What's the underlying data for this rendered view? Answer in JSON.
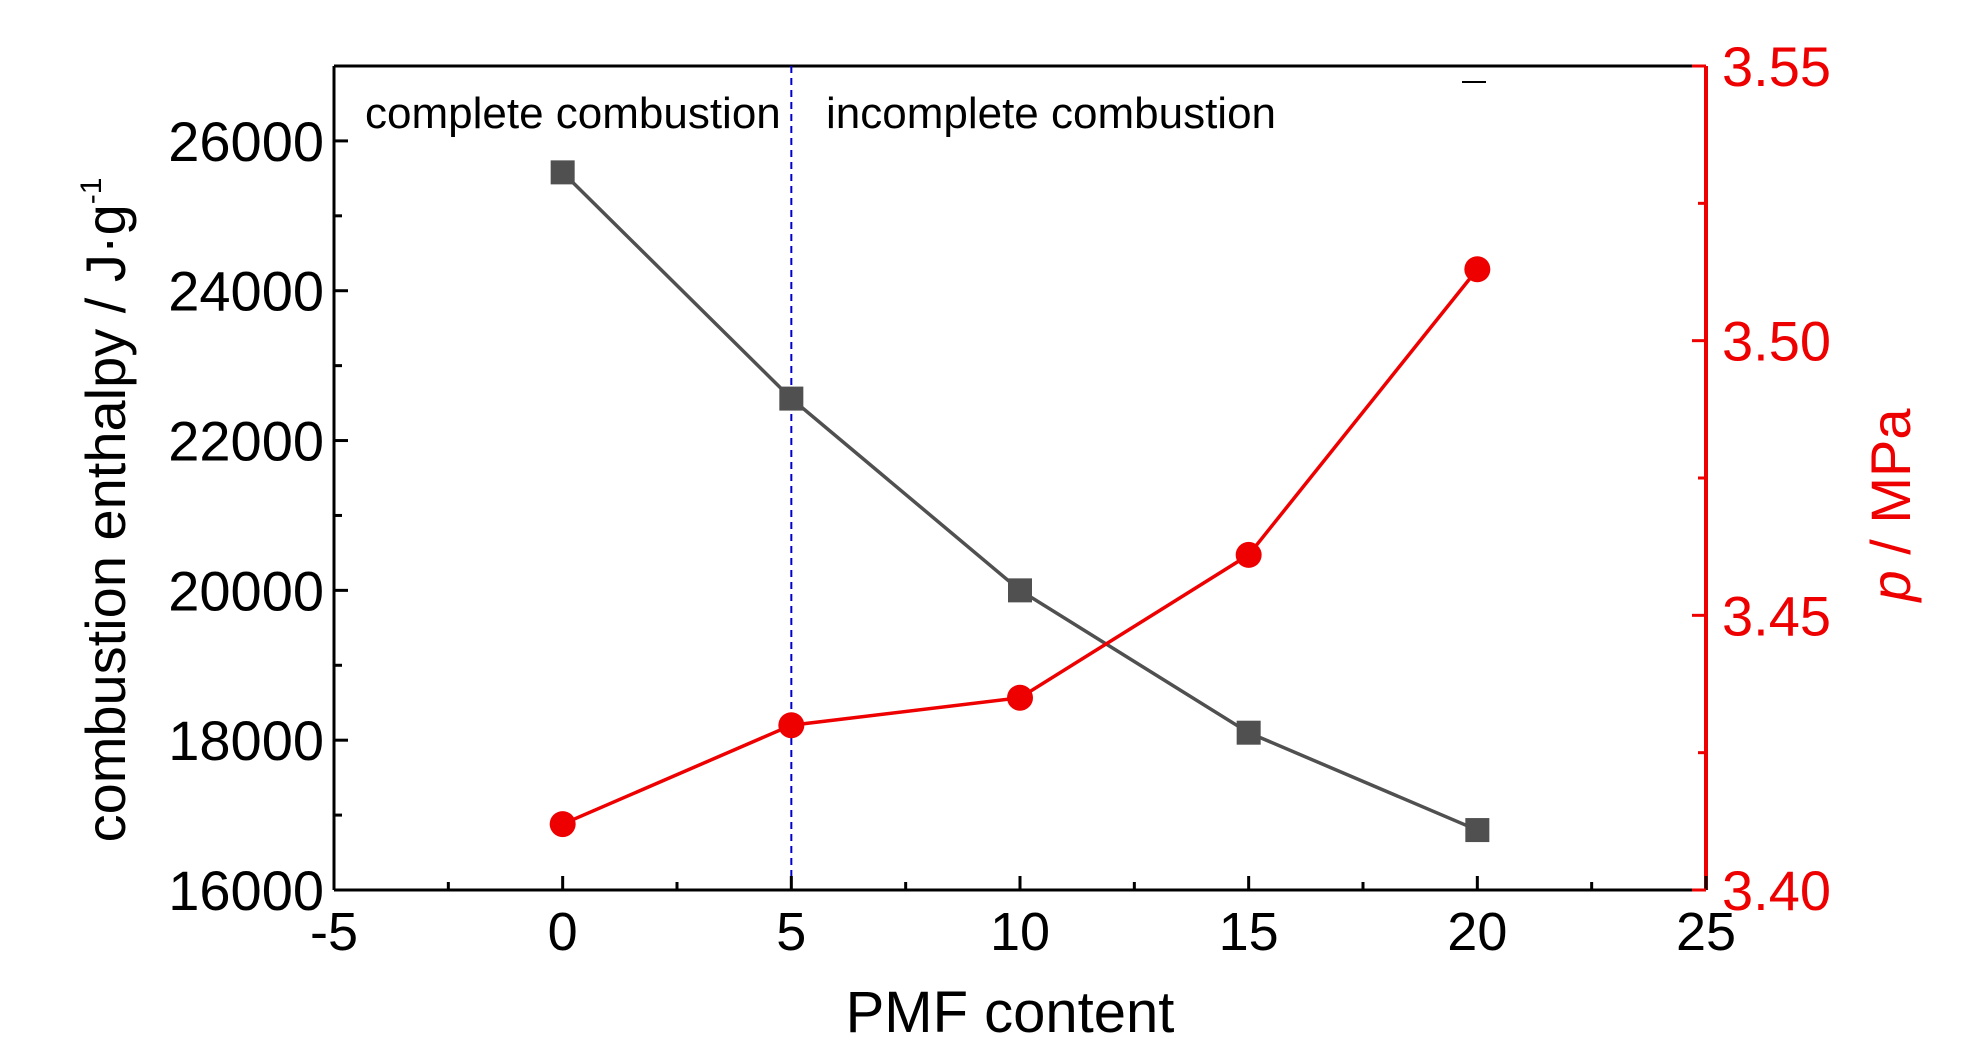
{
  "chart_data": {
    "type": "line",
    "xlabel": "PMF content",
    "ylabel_left": "combustion enthalpy / J·g",
    "ylabel_left_sup": "-1",
    "ylabel_right_italic": "p",
    "ylabel_right_rest": " / MPa",
    "xlim": [
      -5,
      25
    ],
    "ylim_left": [
      16000,
      27000
    ],
    "ylim_right": [
      3.4,
      3.55
    ],
    "x_ticks": [
      -5,
      0,
      5,
      10,
      15,
      20,
      25
    ],
    "y_left_ticks": [
      16000,
      18000,
      20000,
      22000,
      24000,
      26000
    ],
    "y_right_ticks": [
      "3.40",
      "3.45",
      "3.50",
      "3.55"
    ],
    "grid": false,
    "colors": {
      "enthalpy": "#505050",
      "pressure": "#ee0000",
      "divider": "#0000cc",
      "axis": "#000000"
    },
    "series": [
      {
        "axis": "left",
        "marker": "square",
        "x": [
          0,
          5,
          10,
          15,
          20
        ],
        "values": [
          25580,
          22560,
          20000,
          18100,
          16800
        ]
      },
      {
        "axis": "right",
        "marker": "circle",
        "x": [
          0,
          5,
          10,
          15,
          20
        ],
        "values": [
          3.412,
          3.43,
          3.435,
          3.461,
          3.513
        ]
      }
    ],
    "divider_x": 5,
    "annotations": [
      "complete combustion",
      "incomplete combustion"
    ]
  }
}
